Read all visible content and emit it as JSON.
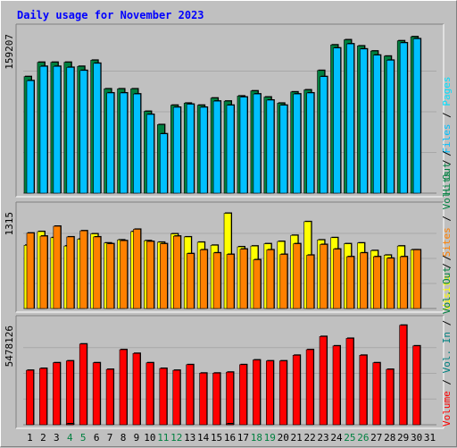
{
  "title": "Daily usage for November 2023",
  "colors": {
    "background": "#c0c0c0",
    "title": "#0000ff",
    "hits": "#008040",
    "files": "#00c0ff",
    "pages": "#00e0ff",
    "visits": "#ffff00",
    "sites": "#ff8000",
    "kbytes": "#ff0000",
    "separator": "#000000",
    "weekend_day_label": "#008040",
    "weekday_label": "#000000"
  },
  "chart_data": {
    "type": "bar",
    "days": [
      "1",
      "2",
      "3",
      "4",
      "5",
      "6",
      "7",
      "8",
      "9",
      "10",
      "11",
      "12",
      "13",
      "14",
      "15",
      "16",
      "17",
      "18",
      "19",
      "20",
      "21",
      "22",
      "23",
      "24",
      "25",
      "26",
      "27",
      "28",
      "29",
      "30",
      "31"
    ],
    "weekend_days": [
      "4",
      "5",
      "11",
      "12",
      "18",
      "19",
      "25",
      "26"
    ],
    "panels": [
      {
        "id": "hits-files",
        "ymax": 159207,
        "ymax_label": "159207",
        "legend": [
          "Hits",
          "/",
          "Files",
          "/",
          "Pages"
        ],
        "series": [
          {
            "name": "Hits",
            "color_key": "hits",
            "values": [
              114000,
              128000,
              128000,
              128000,
              124000,
              130000,
              102000,
              102000,
              102000,
              80000,
              67000,
              86000,
              88000,
              86000,
              93000,
              90000,
              95000,
              100000,
              94000,
              88000,
              99000,
              101000,
              120000,
              145000,
              150000,
              144000,
              139000,
              134000,
              149000,
              153000,
              0
            ]
          },
          {
            "name": "Files",
            "color_key": "files",
            "values": [
              110000,
              124000,
              124000,
              123000,
              120000,
              127000,
              98000,
              98000,
              97000,
              77000,
              58000,
              84000,
              87000,
              84000,
              90000,
              86000,
              94000,
              97000,
              91000,
              86000,
              97000,
              98000,
              114000,
              142000,
              146000,
              141000,
              135000,
              130000,
              147000,
              151000,
              0
            ]
          }
        ]
      },
      {
        "id": "visits-sites",
        "ymax": 1315,
        "ymax_label": "1315",
        "legend": [
          "Visits",
          "/",
          "Sites",
          "/",
          "Vol. Out",
          "/"
        ],
        "series": [
          {
            "name": "Visits",
            "color_key": "visits",
            "values": [
              830,
              1010,
              930,
              820,
              910,
              980,
              860,
              900,
              1010,
              890,
              870,
              980,
              940,
              870,
              830,
              1250,
              810,
              820,
              850,
              880,
              960,
              1140,
              900,
              930,
              850,
              860,
              760,
              700,
              820,
              770,
              0
            ]
          },
          {
            "name": "Sites",
            "color_key": "sites",
            "values": [
              990,
              950,
              1080,
              940,
              1020,
              940,
              850,
              890,
              1040,
              880,
              850,
              950,
              720,
              770,
              730,
              710,
              780,
              640,
              770,
              710,
              850,
              700,
              840,
              780,
              680,
              730,
              680,
              660,
              680,
              770,
              0
            ]
          }
        ]
      },
      {
        "id": "volume",
        "ymax": 5478126,
        "ymax_label": "5478126",
        "legend": [
          "Volume",
          "/",
          "Vol. In",
          "/",
          "Vol. Out",
          "/"
        ],
        "series": [
          {
            "name": "Volume",
            "color_key": "kbytes",
            "values": [
              2900000,
              3000000,
              3300000,
              3400000,
              4300000,
              3300000,
              2950000,
              4000000,
              3800000,
              3300000,
              3000000,
              2900000,
              3200000,
              2750000,
              2750000,
              2800000,
              3200000,
              3450000,
              3400000,
              3400000,
              3700000,
              4000000,
              4700000,
              4200000,
              4600000,
              3700000,
              3300000,
              2950000,
              5300000,
              4200000,
              0
            ]
          },
          {
            "name": "Vol. In",
            "color_key": "kbytes",
            "values": [
              0,
              0,
              0,
              40000,
              0,
              0,
              0,
              0,
              0,
              0,
              0,
              0,
              0,
              0,
              0,
              40000,
              0,
              0,
              0,
              0,
              0,
              0,
              0,
              0,
              0,
              0,
              0,
              0,
              0,
              0,
              0
            ]
          }
        ]
      }
    ]
  }
}
